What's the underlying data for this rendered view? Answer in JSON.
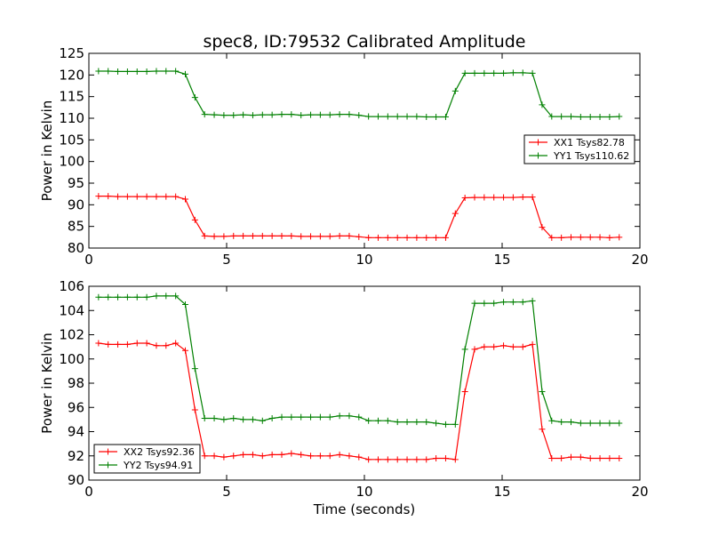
{
  "figure": {
    "title": "spec8, ID:79532 Calibrated Amplitude",
    "xlabel": "Time (seconds)"
  },
  "chart_data": [
    {
      "type": "line",
      "title": "spec8, ID:79532 Calibrated Amplitude",
      "xlabel": "",
      "ylabel": "Power in Kelvin",
      "xlim": [
        0,
        20
      ],
      "ylim": [
        80,
        125
      ],
      "xticks": [
        0,
        5,
        10,
        15,
        20
      ],
      "yticks": [
        80,
        85,
        90,
        95,
        100,
        105,
        110,
        115,
        120,
        125
      ],
      "grid": false,
      "legend_position": "center-right",
      "x": [
        0.35,
        0.7,
        1.05,
        1.4,
        1.75,
        2.1,
        2.45,
        2.8,
        3.15,
        3.5,
        3.85,
        4.2,
        4.55,
        4.9,
        5.25,
        5.6,
        5.95,
        6.3,
        6.65,
        7.0,
        7.35,
        7.7,
        8.05,
        8.4,
        8.75,
        9.1,
        9.45,
        9.8,
        10.15,
        10.5,
        10.85,
        11.2,
        11.55,
        11.9,
        12.25,
        12.6,
        12.95,
        13.3,
        13.65,
        14.0,
        14.35,
        14.7,
        15.05,
        15.4,
        15.75,
        16.1,
        16.45,
        16.8,
        17.15,
        17.5,
        17.85,
        18.2,
        18.55,
        18.9,
        19.25
      ],
      "series": [
        {
          "name": "XX1 Tsys82.78",
          "color": "#ff0000",
          "values": [
            92.0,
            92.0,
            91.9,
            91.9,
            91.9,
            91.9,
            91.9,
            91.9,
            91.9,
            91.3,
            86.5,
            82.8,
            82.7,
            82.7,
            82.8,
            82.8,
            82.8,
            82.8,
            82.8,
            82.8,
            82.8,
            82.7,
            82.7,
            82.7,
            82.7,
            82.8,
            82.8,
            82.6,
            82.4,
            82.4,
            82.4,
            82.4,
            82.4,
            82.4,
            82.4,
            82.4,
            82.4,
            88.0,
            91.6,
            91.7,
            91.7,
            91.7,
            91.7,
            91.7,
            91.8,
            91.8,
            84.8,
            82.4,
            82.4,
            82.5,
            82.5,
            82.5,
            82.5,
            82.4,
            82.5
          ]
        },
        {
          "name": "YY1 Tsys110.62",
          "color": "#008000",
          "values": [
            120.9,
            120.9,
            120.8,
            120.8,
            120.8,
            120.8,
            120.9,
            120.9,
            120.9,
            120.2,
            114.8,
            110.9,
            110.8,
            110.7,
            110.7,
            110.8,
            110.7,
            110.8,
            110.8,
            110.9,
            110.9,
            110.7,
            110.8,
            110.8,
            110.8,
            110.9,
            110.9,
            110.7,
            110.4,
            110.4,
            110.4,
            110.4,
            110.4,
            110.4,
            110.3,
            110.3,
            110.3,
            116.3,
            120.4,
            120.4,
            120.4,
            120.4,
            120.4,
            120.5,
            120.5,
            120.4,
            113.1,
            110.4,
            110.4,
            110.4,
            110.3,
            110.3,
            110.3,
            110.3,
            110.4
          ]
        }
      ]
    },
    {
      "type": "line",
      "title": "",
      "xlabel": "Time (seconds)",
      "ylabel": "Power in Kelvin",
      "xlim": [
        0,
        20
      ],
      "ylim": [
        90,
        106
      ],
      "xticks": [
        0,
        5,
        10,
        15,
        20
      ],
      "yticks": [
        90,
        92,
        94,
        96,
        98,
        100,
        102,
        104,
        106
      ],
      "grid": false,
      "legend_position": "lower-left",
      "x": [
        0.35,
        0.7,
        1.05,
        1.4,
        1.75,
        2.1,
        2.45,
        2.8,
        3.15,
        3.5,
        3.85,
        4.2,
        4.55,
        4.9,
        5.25,
        5.6,
        5.95,
        6.3,
        6.65,
        7.0,
        7.35,
        7.7,
        8.05,
        8.4,
        8.75,
        9.1,
        9.45,
        9.8,
        10.15,
        10.5,
        10.85,
        11.2,
        11.55,
        11.9,
        12.25,
        12.6,
        12.95,
        13.3,
        13.65,
        14.0,
        14.35,
        14.7,
        15.05,
        15.4,
        15.75,
        16.1,
        16.45,
        16.8,
        17.15,
        17.5,
        17.85,
        18.2,
        18.55,
        18.9,
        19.25
      ],
      "series": [
        {
          "name": "XX2 Tsys92.36",
          "color": "#ff0000",
          "values": [
            101.3,
            101.2,
            101.2,
            101.2,
            101.3,
            101.3,
            101.1,
            101.1,
            101.3,
            100.7,
            95.8,
            92.0,
            92.0,
            91.9,
            92.0,
            92.1,
            92.1,
            92.0,
            92.1,
            92.1,
            92.2,
            92.1,
            92.0,
            92.0,
            92.0,
            92.1,
            92.0,
            91.9,
            91.7,
            91.7,
            91.7,
            91.7,
            91.7,
            91.7,
            91.7,
            91.8,
            91.8,
            91.7,
            97.3,
            100.8,
            101.0,
            101.0,
            101.1,
            101.0,
            101.0,
            101.2,
            94.2,
            91.8,
            91.8,
            91.9,
            91.9,
            91.8,
            91.8,
            91.8,
            91.8
          ]
        },
        {
          "name": "YY2 Tsys94.91",
          "color": "#008000",
          "values": [
            105.1,
            105.1,
            105.1,
            105.1,
            105.1,
            105.1,
            105.2,
            105.2,
            105.2,
            104.5,
            99.2,
            95.1,
            95.1,
            95.0,
            95.1,
            95.0,
            95.0,
            94.9,
            95.1,
            95.2,
            95.2,
            95.2,
            95.2,
            95.2,
            95.2,
            95.3,
            95.3,
            95.2,
            94.9,
            94.9,
            94.9,
            94.8,
            94.8,
            94.8,
            94.8,
            94.7,
            94.6,
            94.6,
            100.8,
            104.6,
            104.6,
            104.6,
            104.7,
            104.7,
            104.7,
            104.8,
            97.3,
            94.9,
            94.8,
            94.8,
            94.7,
            94.7,
            94.7,
            94.7,
            94.7
          ]
        }
      ]
    }
  ]
}
